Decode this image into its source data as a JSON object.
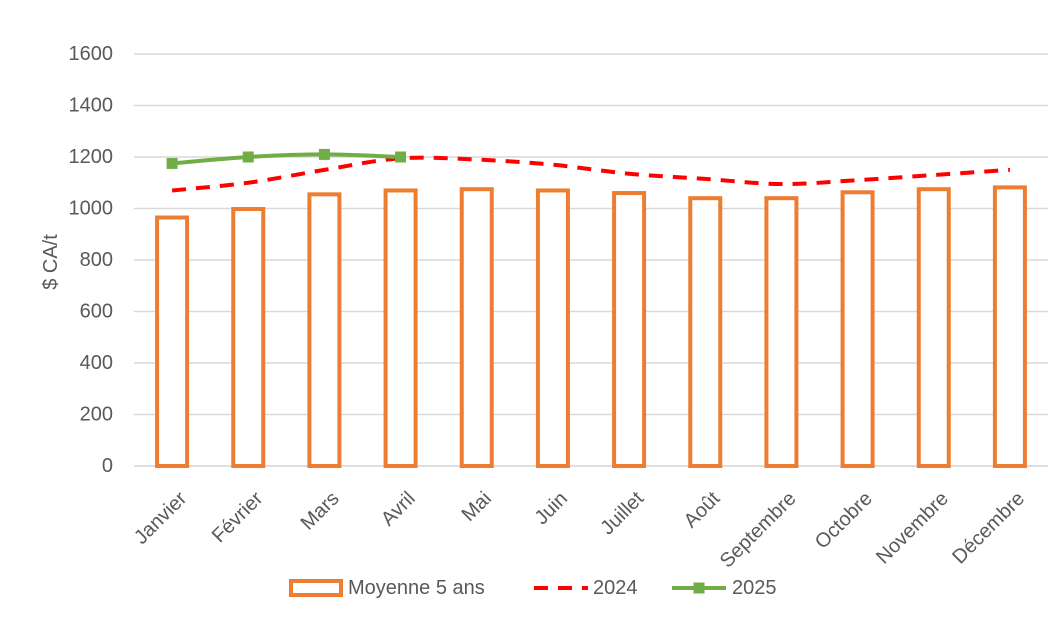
{
  "chart_data": {
    "type": "bar",
    "title": "",
    "xlabel": "",
    "ylabel": "$ CA/t",
    "ylim": [
      0,
      1600
    ],
    "yticks": [
      "0",
      "200",
      "400",
      "600",
      "800",
      "1000",
      "1200",
      "1400",
      "1600"
    ],
    "grid": "horizontal",
    "legend_position": "bottom",
    "categories": [
      "Janvier",
      "Février",
      "Mars",
      "Avril",
      "Mai",
      "Juin",
      "Juillet",
      "Août",
      "Septembre",
      "Octobre",
      "Novembre",
      "Décembre"
    ],
    "series": [
      {
        "name": "Moyenne 5 ans",
        "kind": "bar-outline",
        "color": "#ED7D31",
        "values": [
          965,
          998,
          1055,
          1070,
          1075,
          1070,
          1060,
          1040,
          1040,
          1063,
          1075,
          1082
        ]
      },
      {
        "name": "2024",
        "kind": "line-dashed",
        "color": "#FF0000",
        "values": [
          1070,
          1100,
          1150,
          1195,
          1190,
          1170,
          1135,
          1115,
          1095,
          1110,
          1130,
          1150
        ]
      },
      {
        "name": "2025",
        "kind": "line-markers",
        "color": "#70AD47",
        "values": [
          1175,
          1200,
          1210,
          1200,
          null,
          null,
          null,
          null,
          null,
          null,
          null,
          null
        ]
      }
    ]
  }
}
